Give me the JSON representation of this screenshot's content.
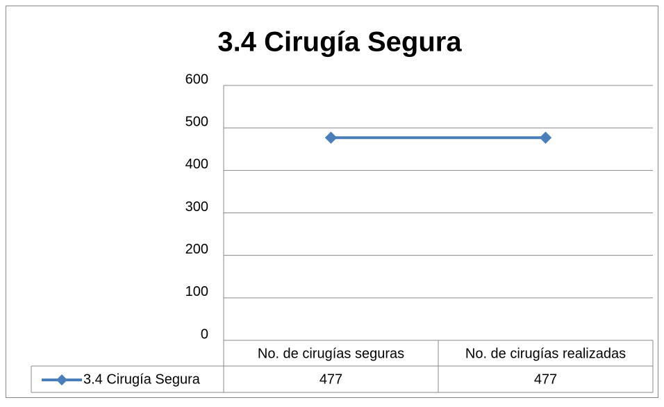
{
  "chart_data": {
    "type": "line",
    "title": "3.4 Cirugía Segura",
    "categories": [
      "No. de cirugías seguras",
      "No. de cirugías realizadas"
    ],
    "series": [
      {
        "name": "3.4 Cirugía Segura",
        "color": "#4a7ebb",
        "values": [
          477,
          477
        ]
      }
    ],
    "ylim": [
      0,
      600
    ],
    "yticks": [
      0,
      100,
      200,
      300,
      400,
      500,
      600
    ],
    "grid": true
  }
}
